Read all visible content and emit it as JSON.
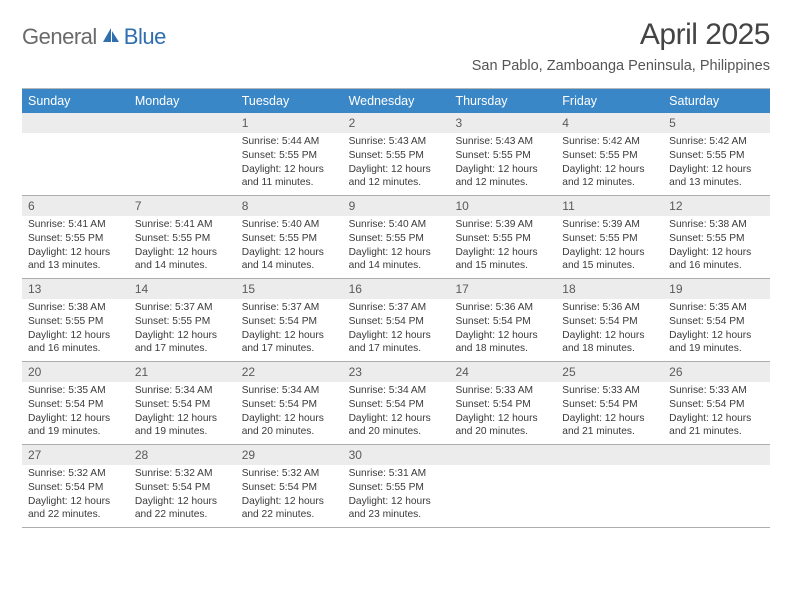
{
  "logo": {
    "word1": "General",
    "word2": "Blue"
  },
  "title": "April 2025",
  "subtitle": "San Pablo, Zamboanga Peninsula, Philippines",
  "colors": {
    "header_bg": "#3a87c8",
    "header_text": "#ffffff",
    "band_bg": "#ececec",
    "border": "#adadad",
    "logo_gray": "#6a6a6a",
    "logo_blue": "#2f6fae"
  },
  "day_headers": [
    "Sunday",
    "Monday",
    "Tuesday",
    "Wednesday",
    "Thursday",
    "Friday",
    "Saturday"
  ],
  "weeks": [
    [
      {
        "num": "",
        "sunrise": "",
        "sunset": "",
        "daylight": ""
      },
      {
        "num": "",
        "sunrise": "",
        "sunset": "",
        "daylight": ""
      },
      {
        "num": "1",
        "sunrise": "Sunrise: 5:44 AM",
        "sunset": "Sunset: 5:55 PM",
        "daylight": "Daylight: 12 hours and 11 minutes."
      },
      {
        "num": "2",
        "sunrise": "Sunrise: 5:43 AM",
        "sunset": "Sunset: 5:55 PM",
        "daylight": "Daylight: 12 hours and 12 minutes."
      },
      {
        "num": "3",
        "sunrise": "Sunrise: 5:43 AM",
        "sunset": "Sunset: 5:55 PM",
        "daylight": "Daylight: 12 hours and 12 minutes."
      },
      {
        "num": "4",
        "sunrise": "Sunrise: 5:42 AM",
        "sunset": "Sunset: 5:55 PM",
        "daylight": "Daylight: 12 hours and 12 minutes."
      },
      {
        "num": "5",
        "sunrise": "Sunrise: 5:42 AM",
        "sunset": "Sunset: 5:55 PM",
        "daylight": "Daylight: 12 hours and 13 minutes."
      }
    ],
    [
      {
        "num": "6",
        "sunrise": "Sunrise: 5:41 AM",
        "sunset": "Sunset: 5:55 PM",
        "daylight": "Daylight: 12 hours and 13 minutes."
      },
      {
        "num": "7",
        "sunrise": "Sunrise: 5:41 AM",
        "sunset": "Sunset: 5:55 PM",
        "daylight": "Daylight: 12 hours and 14 minutes."
      },
      {
        "num": "8",
        "sunrise": "Sunrise: 5:40 AM",
        "sunset": "Sunset: 5:55 PM",
        "daylight": "Daylight: 12 hours and 14 minutes."
      },
      {
        "num": "9",
        "sunrise": "Sunrise: 5:40 AM",
        "sunset": "Sunset: 5:55 PM",
        "daylight": "Daylight: 12 hours and 14 minutes."
      },
      {
        "num": "10",
        "sunrise": "Sunrise: 5:39 AM",
        "sunset": "Sunset: 5:55 PM",
        "daylight": "Daylight: 12 hours and 15 minutes."
      },
      {
        "num": "11",
        "sunrise": "Sunrise: 5:39 AM",
        "sunset": "Sunset: 5:55 PM",
        "daylight": "Daylight: 12 hours and 15 minutes."
      },
      {
        "num": "12",
        "sunrise": "Sunrise: 5:38 AM",
        "sunset": "Sunset: 5:55 PM",
        "daylight": "Daylight: 12 hours and 16 minutes."
      }
    ],
    [
      {
        "num": "13",
        "sunrise": "Sunrise: 5:38 AM",
        "sunset": "Sunset: 5:55 PM",
        "daylight": "Daylight: 12 hours and 16 minutes."
      },
      {
        "num": "14",
        "sunrise": "Sunrise: 5:37 AM",
        "sunset": "Sunset: 5:55 PM",
        "daylight": "Daylight: 12 hours and 17 minutes."
      },
      {
        "num": "15",
        "sunrise": "Sunrise: 5:37 AM",
        "sunset": "Sunset: 5:54 PM",
        "daylight": "Daylight: 12 hours and 17 minutes."
      },
      {
        "num": "16",
        "sunrise": "Sunrise: 5:37 AM",
        "sunset": "Sunset: 5:54 PM",
        "daylight": "Daylight: 12 hours and 17 minutes."
      },
      {
        "num": "17",
        "sunrise": "Sunrise: 5:36 AM",
        "sunset": "Sunset: 5:54 PM",
        "daylight": "Daylight: 12 hours and 18 minutes."
      },
      {
        "num": "18",
        "sunrise": "Sunrise: 5:36 AM",
        "sunset": "Sunset: 5:54 PM",
        "daylight": "Daylight: 12 hours and 18 minutes."
      },
      {
        "num": "19",
        "sunrise": "Sunrise: 5:35 AM",
        "sunset": "Sunset: 5:54 PM",
        "daylight": "Daylight: 12 hours and 19 minutes."
      }
    ],
    [
      {
        "num": "20",
        "sunrise": "Sunrise: 5:35 AM",
        "sunset": "Sunset: 5:54 PM",
        "daylight": "Daylight: 12 hours and 19 minutes."
      },
      {
        "num": "21",
        "sunrise": "Sunrise: 5:34 AM",
        "sunset": "Sunset: 5:54 PM",
        "daylight": "Daylight: 12 hours and 19 minutes."
      },
      {
        "num": "22",
        "sunrise": "Sunrise: 5:34 AM",
        "sunset": "Sunset: 5:54 PM",
        "daylight": "Daylight: 12 hours and 20 minutes."
      },
      {
        "num": "23",
        "sunrise": "Sunrise: 5:34 AM",
        "sunset": "Sunset: 5:54 PM",
        "daylight": "Daylight: 12 hours and 20 minutes."
      },
      {
        "num": "24",
        "sunrise": "Sunrise: 5:33 AM",
        "sunset": "Sunset: 5:54 PM",
        "daylight": "Daylight: 12 hours and 20 minutes."
      },
      {
        "num": "25",
        "sunrise": "Sunrise: 5:33 AM",
        "sunset": "Sunset: 5:54 PM",
        "daylight": "Daylight: 12 hours and 21 minutes."
      },
      {
        "num": "26",
        "sunrise": "Sunrise: 5:33 AM",
        "sunset": "Sunset: 5:54 PM",
        "daylight": "Daylight: 12 hours and 21 minutes."
      }
    ],
    [
      {
        "num": "27",
        "sunrise": "Sunrise: 5:32 AM",
        "sunset": "Sunset: 5:54 PM",
        "daylight": "Daylight: 12 hours and 22 minutes."
      },
      {
        "num": "28",
        "sunrise": "Sunrise: 5:32 AM",
        "sunset": "Sunset: 5:54 PM",
        "daylight": "Daylight: 12 hours and 22 minutes."
      },
      {
        "num": "29",
        "sunrise": "Sunrise: 5:32 AM",
        "sunset": "Sunset: 5:54 PM",
        "daylight": "Daylight: 12 hours and 22 minutes."
      },
      {
        "num": "30",
        "sunrise": "Sunrise: 5:31 AM",
        "sunset": "Sunset: 5:55 PM",
        "daylight": "Daylight: 12 hours and 23 minutes."
      },
      {
        "num": "",
        "sunrise": "",
        "sunset": "",
        "daylight": ""
      },
      {
        "num": "",
        "sunrise": "",
        "sunset": "",
        "daylight": ""
      },
      {
        "num": "",
        "sunrise": "",
        "sunset": "",
        "daylight": ""
      }
    ]
  ]
}
